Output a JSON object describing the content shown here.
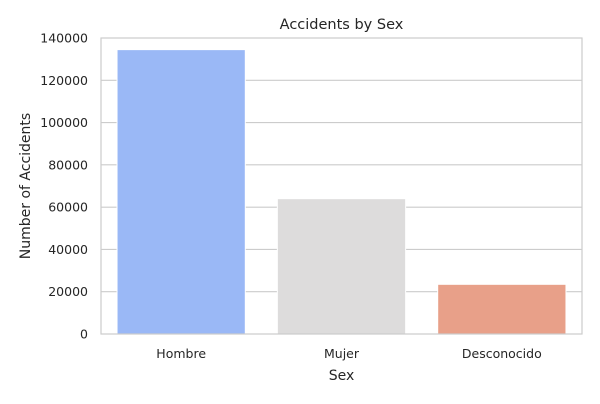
{
  "chart_data": {
    "type": "bar",
    "title": "Accidents by Sex",
    "xlabel": "Sex",
    "ylabel": "Number of Accidents",
    "categories": [
      "Hombre",
      "Mujer",
      "Desconocido"
    ],
    "values": [
      134500,
      64000,
      23500
    ],
    "bar_colors": [
      "#9ab8f6",
      "#dddcdc",
      "#e8a089"
    ],
    "ylim": [
      0,
      140000
    ],
    "yticks": [
      0,
      20000,
      40000,
      60000,
      80000,
      100000,
      120000,
      140000
    ],
    "grid": true,
    "legend": "none"
  }
}
